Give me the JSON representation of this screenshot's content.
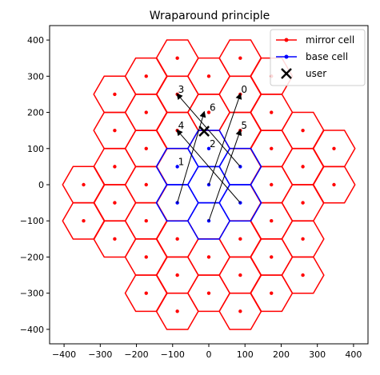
{
  "chart_data": {
    "type": "scatter",
    "title": "Wraparound principle",
    "xlabel": "",
    "ylabel": "",
    "xlim": [
      -440,
      440
    ],
    "ylim": [
      -440,
      440
    ],
    "x_ticks": [
      -400,
      -300,
      -200,
      -100,
      0,
      100,
      200,
      300,
      400
    ],
    "y_ticks": [
      -400,
      -300,
      -200,
      -100,
      0,
      100,
      200,
      300,
      400
    ],
    "x_tick_labels": [
      "−400",
      "−300",
      "−200",
      "−100",
      "0",
      "100",
      "200",
      "300",
      "400"
    ],
    "y_tick_labels": [
      "−400",
      "−300",
      "−200",
      "−100",
      "0",
      "100",
      "200",
      "300",
      "400"
    ],
    "grid": false,
    "legend_position": "top-right",
    "hex_radius": 58,
    "colors": {
      "mirror": "#ff0000",
      "base": "#0000ff",
      "user": "#000000",
      "arrow": "#000000"
    },
    "legend": [
      {
        "label": "mirror cell",
        "marker": "line-dot",
        "color": "#ff0000"
      },
      {
        "label": "base cell",
        "marker": "line-dot",
        "color": "#0000ff"
      },
      {
        "label": "user",
        "marker": "x",
        "color": "#000000"
      }
    ],
    "base_cells": [
      {
        "x": 0,
        "y": 0
      },
      {
        "x": 87,
        "y": 50
      },
      {
        "x": 0,
        "y": 100
      },
      {
        "x": -87,
        "y": 50
      },
      {
        "x": -87,
        "y": -50
      },
      {
        "x": 0,
        "y": -100
      },
      {
        "x": 87,
        "y": -50
      }
    ],
    "mirror_cells": [
      {
        "x": -87,
        "y": 350
      },
      {
        "x": 87,
        "y": 350
      },
      {
        "x": -87,
        "y": 250
      },
      {
        "x": 87,
        "y": 250
      },
      {
        "x": -87,
        "y": 150
      },
      {
        "x": 87,
        "y": 150
      },
      {
        "x": -87,
        "y": -150
      },
      {
        "x": 87,
        "y": -150
      },
      {
        "x": -87,
        "y": -250
      },
      {
        "x": 87,
        "y": -250
      },
      {
        "x": -87,
        "y": -350
      },
      {
        "x": 87,
        "y": -350
      },
      {
        "x": 0,
        "y": 300
      },
      {
        "x": 0,
        "y": 200
      },
      {
        "x": 0,
        "y": -200
      },
      {
        "x": 0,
        "y": -300
      },
      {
        "x": -173,
        "y": 300
      },
      {
        "x": -173,
        "y": 200
      },
      {
        "x": -173,
        "y": 100
      },
      {
        "x": -173,
        "y": 0
      },
      {
        "x": -173,
        "y": -100
      },
      {
        "x": -173,
        "y": -200
      },
      {
        "x": -173,
        "y": -300
      },
      {
        "x": 173,
        "y": 300
      },
      {
        "x": 173,
        "y": 200
      },
      {
        "x": 173,
        "y": 100
      },
      {
        "x": 173,
        "y": 0
      },
      {
        "x": 173,
        "y": -100
      },
      {
        "x": 173,
        "y": -200
      },
      {
        "x": 173,
        "y": -300
      },
      {
        "x": -260,
        "y": 250
      },
      {
        "x": -260,
        "y": 150
      },
      {
        "x": -260,
        "y": 50
      },
      {
        "x": -260,
        "y": -50
      },
      {
        "x": -260,
        "y": -150
      },
      {
        "x": 260,
        "y": 150
      },
      {
        "x": 260,
        "y": 50
      },
      {
        "x": 260,
        "y": -50
      },
      {
        "x": 260,
        "y": -150
      },
      {
        "x": 260,
        "y": -250
      },
      {
        "x": -346,
        "y": 0
      },
      {
        "x": -346,
        "y": -100
      },
      {
        "x": 346,
        "y": 100
      },
      {
        "x": 346,
        "y": 0
      }
    ],
    "user": {
      "x": -13,
      "y": 148
    },
    "arrows": [
      {
        "from": [
          -87,
          -50
        ],
        "to": [
          -13,
          200
        ]
      },
      {
        "from": [
          -87,
          50
        ],
        "to": [
          -87,
          50
        ]
      },
      {
        "from": [
          0,
          100
        ],
        "to": [
          0,
          100
        ]
      },
      {
        "from": [
          87,
          50
        ],
        "to": [
          -87,
          250
        ]
      },
      {
        "from": [
          87,
          -50
        ],
        "to": [
          -87,
          150
        ]
      },
      {
        "from": [
          0,
          -100
        ],
        "to": [
          87,
          150
        ]
      },
      {
        "from": [
          0,
          0
        ],
        "to": [
          87,
          250
        ]
      }
    ],
    "cell_labels": [
      {
        "text": "0",
        "x": 87,
        "y": 250
      },
      {
        "text": "1",
        "x": -87,
        "y": 50
      },
      {
        "text": "2",
        "x": 0,
        "y": 100
      },
      {
        "text": "3",
        "x": -87,
        "y": 250
      },
      {
        "text": "4",
        "x": -87,
        "y": 150
      },
      {
        "text": "5",
        "x": 87,
        "y": 150
      },
      {
        "text": "6",
        "x": 0,
        "y": 200
      }
    ]
  }
}
